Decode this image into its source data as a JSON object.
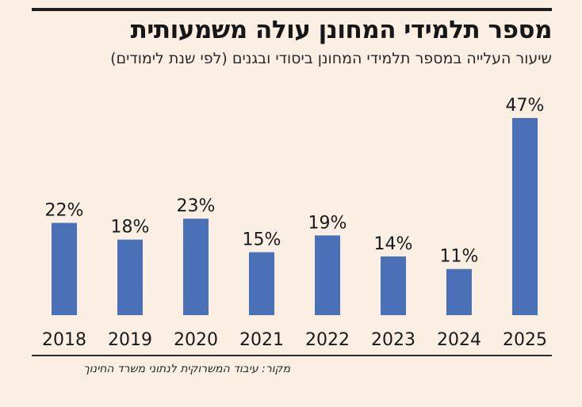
{
  "title": "מספר תלמידי המחונן עולה משמעותית",
  "subtitle": "שיעור העלייה במספר תלמידי המחונן ביסודי ובגנים (לפי שנת לימודים)",
  "source": "מקור: עיבוד המשרוקית לנתוני משרד החינוך",
  "chart_data": {
    "type": "bar",
    "title": "מספר תלמידי המחונן עולה משמעותית",
    "subtitle": "שיעור העלייה במספר תלמידי המחונן ביסודי ובגנים (לפי שנת לימודים)",
    "categories": [
      "2018",
      "2019",
      "2020",
      "2021",
      "2022",
      "2023",
      "2024",
      "2025"
    ],
    "values": [
      22,
      18,
      23,
      15,
      19,
      14,
      11,
      47
    ],
    "value_labels": [
      "22%",
      "18%",
      "23%",
      "15%",
      "19%",
      "14%",
      "11%",
      "47%"
    ],
    "unit": "%",
    "xlabel": "",
    "ylabel": "",
    "ylim": [
      0,
      47
    ],
    "grid": false,
    "bar_color": "#4a70b7"
  }
}
